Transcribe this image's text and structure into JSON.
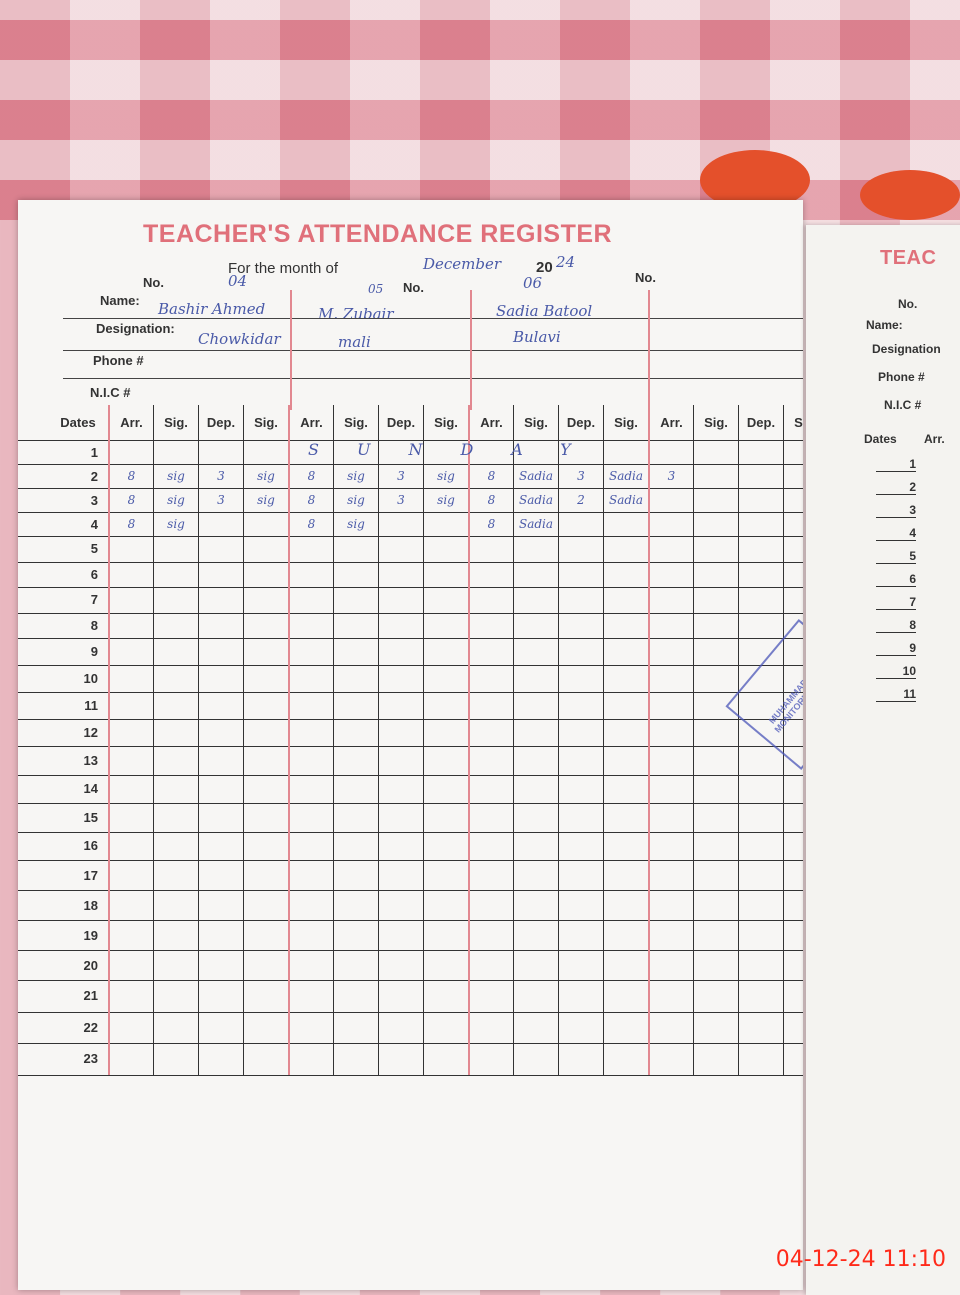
{
  "register": {
    "title": "TEACHER'S ATTENDANCE REGISTER",
    "month_label": "For the month of",
    "month_value": "December",
    "year_prefix": "20",
    "year_value": "24",
    "no_label": "No.",
    "labels": {
      "name": "Name:",
      "designation": "Designation:",
      "phone": "Phone #",
      "nic": "N.I.C #",
      "dates": "Dates"
    },
    "column_headers": [
      "Arr.",
      "Sig.",
      "Dep.",
      "Sig."
    ],
    "teachers": [
      {
        "no": "04",
        "name": "Bashir Ahmed",
        "designation": "Chowkidar"
      },
      {
        "no": "05",
        "name": "M. Zubair",
        "designation": "mali"
      },
      {
        "no": "06",
        "name": "Sadia Batool",
        "designation": "Bulavi"
      },
      {
        "no": "",
        "name": "",
        "designation": ""
      }
    ],
    "sunday_note": "SUNDAY",
    "entries": {
      "2": [
        "8",
        "sig",
        "3",
        "sig",
        "8",
        "sig",
        "3",
        "sig",
        "8",
        "Sadia",
        "3",
        "Sadia",
        "3",
        "",
        "",
        ""
      ],
      "3": [
        "8",
        "sig",
        "3",
        "sig",
        "8",
        "sig",
        "3",
        "sig",
        "8",
        "Sadia",
        "2",
        "Sadia",
        "",
        "",
        "",
        ""
      ],
      "4": [
        "8",
        "sig",
        "",
        "",
        "8",
        "sig",
        "",
        "",
        "8",
        "Sadia",
        "",
        "",
        "",
        "",
        "",
        ""
      ]
    },
    "dates": [
      "1",
      "2",
      "3",
      "4",
      "5",
      "6",
      "7",
      "8",
      "9",
      "10",
      "11",
      "12",
      "13",
      "14",
      "15",
      "16",
      "17",
      "18",
      "19",
      "20",
      "21",
      "22",
      "23"
    ]
  },
  "right_page": {
    "title": "TEAC",
    "labels": [
      "No.",
      "Name:",
      "Designation",
      "Phone #",
      "N.I.C #"
    ],
    "dates_label": "Dates",
    "arr_label": "Arr.",
    "dates": [
      "1",
      "2",
      "3",
      "4",
      "5",
      "6",
      "7",
      "8",
      "9",
      "10",
      "11"
    ]
  },
  "stamp_text": "MUHAMMAD ... CR MONITORING DISTT",
  "timestamp": "04-12-24  11:10",
  "colors": {
    "print_red": "#e0707a",
    "ink_blue": "#4a5aa8",
    "stamp_blue": "#4b56b8",
    "timestamp_red": "#ff2a1a"
  }
}
